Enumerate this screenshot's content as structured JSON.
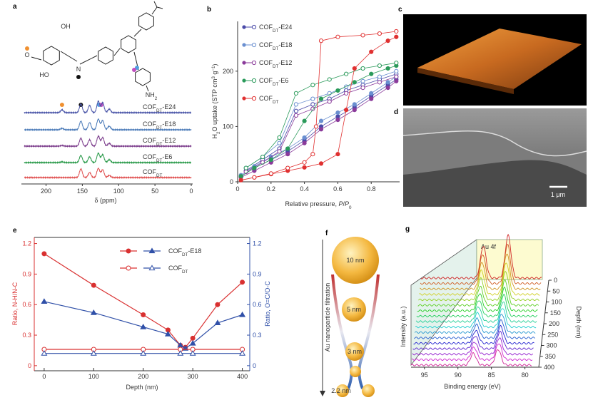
{
  "chart_data": [
    {
      "type": "spectra",
      "letter": "a",
      "xlim": [
        230,
        0
      ],
      "xticks": [
        200,
        150,
        100,
        50,
        0
      ],
      "xlabel": "δ (ppm)",
      "structure": {
        "labels": [
          "OH",
          "HO",
          "N",
          "O"
        ],
        "amine": {
          "parts": [
            "NH",
            "2"
          ],
          "shifts": [
            "normal",
            "sub"
          ]
        }
      },
      "peaks_ppm": [
        178,
        152,
        140,
        128,
        122,
        113
      ],
      "series": [
        {
          "name": {
            "parts": [
              "COF",
              "DT",
              "-E24"
            ],
            "shifts": [
              "normal",
              "sub",
              "normal"
            ]
          },
          "color": "#4a55a8",
          "values": [
            4,
            12,
            10,
            16,
            14,
            5
          ]
        },
        {
          "name": {
            "parts": [
              "COF",
              "DT",
              "-E18"
            ],
            "shifts": [
              "normal",
              "sub",
              "normal"
            ]
          },
          "color": "#4a7ab8",
          "values": [
            2,
            12,
            10,
            15,
            13,
            5
          ]
        },
        {
          "name": {
            "parts": [
              "COF",
              "DT",
              "-E12"
            ],
            "shifts": [
              "normal",
              "sub",
              "normal"
            ]
          },
          "color": "#7a3a8a",
          "values": [
            1,
            11,
            9,
            14,
            12,
            4
          ]
        },
        {
          "name": {
            "parts": [
              "COF",
              "DT",
              "-E6"
            ],
            "shifts": [
              "normal",
              "sub",
              "normal"
            ]
          },
          "color": "#2a9a4a",
          "values": [
            1,
            10,
            8,
            13,
            11,
            4
          ]
        },
        {
          "name": {
            "parts": [
              "COF",
              "DT"
            ],
            "shifts": [
              "normal",
              "sub"
            ]
          },
          "color": "#e05050",
          "values": [
            0,
            12,
            7,
            13,
            11,
            3
          ]
        }
      ]
    },
    {
      "type": "scatter",
      "letter": "b",
      "xlim": [
        0,
        0.97
      ],
      "ylim": [
        0,
        290
      ],
      "xticks": [
        0,
        0.2,
        0.4,
        0.6,
        0.8
      ],
      "yticks": [
        0,
        100,
        200
      ],
      "xlabel": {
        "parts": [
          "Relative pressure, ",
          "P",
          "/",
          "P",
          "0"
        ],
        "shifts": [
          "normal",
          "italic",
          "normal",
          "italic",
          "sub"
        ]
      },
      "ylabel": {
        "parts": [
          "H",
          "2",
          "O uptake (STP cm",
          "3",
          " g",
          "−1",
          ")"
        ],
        "shifts": [
          "normal",
          "sub",
          "normal",
          "super",
          "normal",
          "super",
          "normal"
        ]
      },
      "series": [
        {
          "name": {
            "parts": [
              "COF",
              "DT",
              "-E24"
            ],
            "shifts": [
              "normal",
              "sub",
              "normal"
            ]
          },
          "color": "#4a4aa8",
          "adsorption": {
            "x": [
              0.02,
              0.1,
              0.2,
              0.3,
              0.4,
              0.5,
              0.6,
              0.7,
              0.8,
              0.9,
              0.95
            ],
            "values": [
              10,
              25,
              40,
              55,
              75,
              100,
              118,
              135,
              155,
              175,
              185
            ]
          },
          "desorption": {
            "x": [
              0.95,
              0.85,
              0.75,
              0.65,
              0.55,
              0.45,
              0.35,
              0.25,
              0.15,
              0.05
            ],
            "values": [
              195,
              185,
              175,
              165,
              150,
              140,
              128,
              60,
              40,
              20
            ]
          }
        },
        {
          "name": {
            "parts": [
              "COF",
              "DT",
              "-E18"
            ],
            "shifts": [
              "normal",
              "sub",
              "normal"
            ]
          },
          "color": "#6a8fd0",
          "adsorption": {
            "x": [
              0.02,
              0.1,
              0.2,
              0.3,
              0.4,
              0.5,
              0.6,
              0.7,
              0.8,
              0.9,
              0.95
            ],
            "values": [
              12,
              28,
              45,
              60,
              80,
              110,
              125,
              140,
              160,
              180,
              190
            ]
          },
          "desorption": {
            "x": [
              0.95,
              0.85,
              0.75,
              0.65,
              0.55,
              0.45,
              0.35,
              0.25,
              0.15,
              0.05
            ],
            "values": [
              200,
              190,
              182,
              172,
              160,
              150,
              140,
              70,
              45,
              25
            ]
          }
        },
        {
          "name": {
            "parts": [
              "COF",
              "DT",
              "-E12"
            ],
            "shifts": [
              "normal",
              "sub",
              "normal"
            ]
          },
          "color": "#8a3a9a",
          "adsorption": {
            "x": [
              0.02,
              0.1,
              0.2,
              0.3,
              0.4,
              0.5,
              0.6,
              0.7,
              0.8,
              0.9,
              0.95
            ],
            "values": [
              8,
              20,
              35,
              50,
              70,
              95,
              112,
              130,
              150,
              170,
              182
            ]
          },
          "desorption": {
            "x": [
              0.95,
              0.85,
              0.75,
              0.65,
              0.55,
              0.45,
              0.35,
              0.25,
              0.15,
              0.05
            ],
            "values": [
              190,
              180,
              170,
              160,
              145,
              132,
              120,
              55,
              35,
              18
            ]
          }
        },
        {
          "name": {
            "parts": [
              "COF",
              "DT",
              "-E6"
            ],
            "shifts": [
              "normal",
              "sub",
              "normal"
            ]
          },
          "color": "#2a9a5a",
          "adsorption": {
            "x": [
              0.02,
              0.1,
              0.2,
              0.3,
              0.4,
              0.5,
              0.6,
              0.7,
              0.8,
              0.9,
              0.95
            ],
            "values": [
              10,
              25,
              40,
              60,
              110,
              150,
              165,
              180,
              195,
              205,
              210
            ]
          },
          "desorption": {
            "x": [
              0.95,
              0.85,
              0.75,
              0.65,
              0.55,
              0.45,
              0.35,
              0.25,
              0.15,
              0.05
            ],
            "values": [
              215,
              210,
              205,
              195,
              185,
              175,
              160,
              80,
              45,
              25
            ]
          }
        },
        {
          "name": {
            "parts": [
              "COF",
              "DT"
            ],
            "shifts": [
              "normal",
              "sub"
            ]
          },
          "color": "#e03030",
          "adsorption": {
            "x": [
              0.02,
              0.1,
              0.2,
              0.3,
              0.4,
              0.5,
              0.6,
              0.65,
              0.7,
              0.8,
              0.9,
              0.95
            ],
            "values": [
              3,
              8,
              14,
              20,
              26,
              33,
              50,
              130,
              205,
              235,
              255,
              262
            ]
          },
          "desorption": {
            "x": [
              0.95,
              0.85,
              0.75,
              0.6,
              0.5,
              0.47,
              0.45,
              0.4,
              0.3,
              0.2,
              0.1
            ],
            "values": [
              272,
              268,
              265,
              262,
              255,
              100,
              50,
              35,
              25,
              15,
              8
            ]
          }
        }
      ]
    },
    {
      "type": "line",
      "letter": "e",
      "xlim": [
        -20,
        415
      ],
      "ylim": [
        -0.05,
        1.26
      ],
      "y2lim": [
        -0.05,
        1.26
      ],
      "xticks": [
        0,
        100,
        200,
        300,
        400
      ],
      "yticks": [
        0,
        0.3,
        0.6,
        0.9,
        1.2
      ],
      "y2ticks": [
        0,
        0.3,
        0.6,
        0.9,
        1.2
      ],
      "xlabel": "Depth (nm)",
      "ylabel": "Ratio, N-H/N-C",
      "y2label": "Ratio, O=C/O-C",
      "ycolor": "#d93030",
      "y2color": "#3050a8",
      "series": [
        {
          "color": "#d93030",
          "marker": "circle",
          "filled": true,
          "x": [
            0,
            100,
            200,
            250,
            275,
            285,
            300,
            350,
            400
          ],
          "values": [
            1.1,
            0.79,
            0.5,
            0.35,
            0.2,
            0.18,
            0.27,
            0.6,
            0.82
          ]
        },
        {
          "name": {
            "parts": [
              "COF",
              "DT",
              "-E18"
            ],
            "shifts": [
              "normal",
              "sub",
              "normal"
            ]
          },
          "color": "#3050a8",
          "marker": "triangle",
          "filled": true,
          "axis": "y2",
          "x": [
            0,
            100,
            200,
            250,
            275,
            285,
            300,
            350,
            400
          ],
          "values": [
            0.63,
            0.52,
            0.38,
            0.31,
            0.2,
            0.17,
            0.22,
            0.42,
            0.5
          ]
        },
        {
          "color": "#d93030",
          "marker": "circle",
          "filled": false,
          "x": [
            0,
            100,
            200,
            275,
            300,
            400
          ],
          "values": [
            0.16,
            0.16,
            0.16,
            0.16,
            0.16,
            0.16
          ]
        },
        {
          "name": {
            "parts": [
              "COF",
              "DT"
            ],
            "shifts": [
              "normal",
              "sub"
            ]
          },
          "color": "#3050a8",
          "marker": "triangle",
          "filled": false,
          "axis": "y2",
          "x": [
            0,
            100,
            200,
            275,
            300,
            400
          ],
          "values": [
            0.12,
            0.12,
            0.12,
            0.12,
            0.12,
            0.12
          ]
        }
      ]
    },
    {
      "type": "waterfall",
      "letter": "g",
      "xlim": [
        97,
        79
      ],
      "xticks": [
        95,
        90,
        85,
        80
      ],
      "xlabel": "Binding energy (eV)",
      "ylabel": "Intensity (a.u.)",
      "zlabel": "Depth (nm)",
      "zlim": [
        0,
        400
      ],
      "zticks": [
        0,
        50,
        100,
        150,
        200,
        250,
        300,
        350,
        400
      ],
      "inset": "Au 4f",
      "peaks_ev": [
        84,
        87.7
      ],
      "depths": [
        0,
        25,
        50,
        75,
        100,
        125,
        150,
        175,
        200,
        225,
        250,
        275,
        300,
        325,
        350,
        375,
        400
      ],
      "values": [
        60,
        55,
        50,
        45,
        40,
        35,
        32,
        30,
        28,
        27,
        26,
        25,
        24,
        24,
        23,
        23,
        22
      ]
    }
  ],
  "panel_c": {
    "letter": "c"
  },
  "panel_d": {
    "letter": "d",
    "scale_bar": "1 μm"
  },
  "panel_f": {
    "letter": "f",
    "axis_label": "Au nanoparticle filtration",
    "labels": [
      "10 nm",
      "5 nm",
      "3 nm",
      "2.2 nm"
    ]
  }
}
